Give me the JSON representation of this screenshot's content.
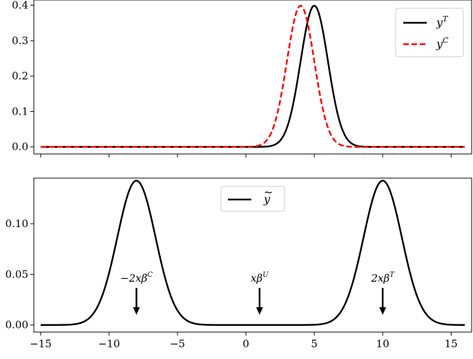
{
  "chart_data": [
    {
      "type": "line",
      "title": "",
      "xlabel": "",
      "ylabel": "",
      "xlim": [
        -15.5,
        16.5
      ],
      "ylim": [
        -0.02,
        0.415
      ],
      "x_ticks": [
        -15,
        -10,
        -5,
        0,
        5,
        10,
        15
      ],
      "x_tick_labels_shown": false,
      "y_ticks": [
        0.0,
        0.1,
        0.2,
        0.3,
        0.4
      ],
      "y_tick_labels": [
        "0.0",
        "0.1",
        "0.2",
        "0.3",
        "0.4"
      ],
      "grid": false,
      "legend_position": "top-right",
      "series": [
        {
          "name": "y^T",
          "legend_label": "yT",
          "color": "#000000",
          "style": "solid",
          "distribution": "normal",
          "mean": 5,
          "std": 1,
          "x_range": [
            -15,
            16
          ]
        },
        {
          "name": "y^C",
          "legend_label": "yC",
          "color": "#ff0000",
          "style": "dashed",
          "distribution": "normal",
          "mean": 4,
          "std": 1,
          "x_range": [
            -15,
            16
          ]
        }
      ]
    },
    {
      "type": "line",
      "title": "",
      "xlabel": "",
      "ylabel": "",
      "xlim": [
        -15.5,
        16.5
      ],
      "ylim": [
        -0.007,
        0.145
      ],
      "x_ticks": [
        -15,
        -10,
        -5,
        0,
        5,
        10,
        15
      ],
      "x_tick_labels": [
        "−15",
        "−10",
        "−5",
        "0",
        "5",
        "10",
        "15"
      ],
      "y_ticks": [
        0.0,
        0.05,
        0.1
      ],
      "y_tick_labels": [
        "0.00",
        "0.05",
        "0.10"
      ],
      "grid": false,
      "legend_position": "top-center",
      "series": [
        {
          "name": "y~",
          "legend_label": "ỹ",
          "color": "#000000",
          "style": "solid",
          "distribution": "mixture of two normals",
          "components": [
            {
              "mean": -8,
              "std": 1.4,
              "weight": 0.5
            },
            {
              "mean": 10,
              "std": 1.4,
              "weight": 0.5
            }
          ],
          "x_range": [
            -15,
            16
          ]
        }
      ],
      "annotations": [
        {
          "text": "−2xβC",
          "x": -8,
          "arrow": "down"
        },
        {
          "text": "xβU",
          "x": 1,
          "arrow": "down"
        },
        {
          "text": "2xβT",
          "x": 10,
          "arrow": "down"
        }
      ]
    }
  ]
}
